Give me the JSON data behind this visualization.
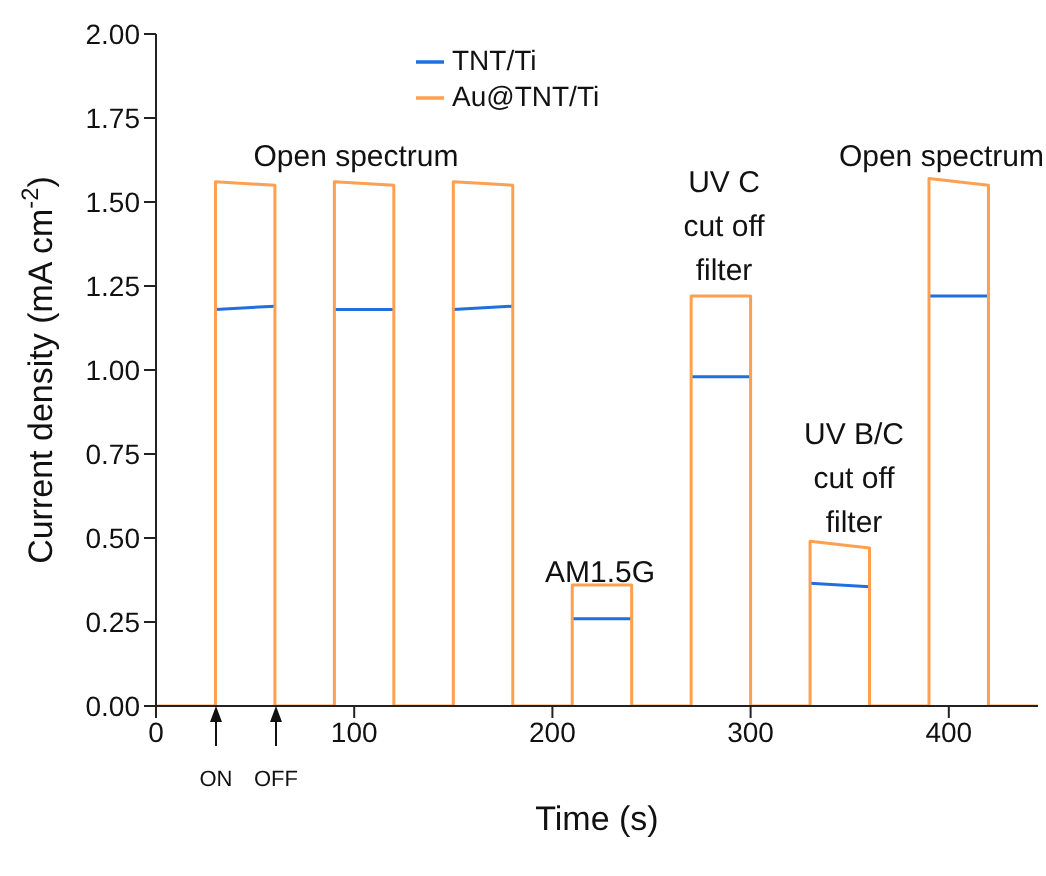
{
  "chart_data": {
    "type": "line",
    "xlabel": "Time (s)",
    "ylabel": "Current density (mA cm$^{-2}$)",
    "x": [
      0,
      30,
      30,
      60,
      60,
      90,
      90,
      120,
      120,
      150,
      150,
      180,
      180,
      210,
      210,
      240,
      240,
      270,
      270,
      300,
      300,
      330,
      330,
      360,
      360,
      390,
      390,
      420,
      420,
      445
    ],
    "series": [
      {
        "name": "TNT/Ti",
        "color": "#1f6fe0",
        "values": [
          null,
          null,
          1.18,
          1.19,
          null,
          null,
          1.18,
          1.18,
          null,
          null,
          1.18,
          1.19,
          null,
          null,
          0.26,
          0.26,
          null,
          null,
          0.98,
          0.98,
          null,
          null,
          0.365,
          0.355,
          null,
          null,
          1.22,
          1.22,
          null,
          null
        ]
      },
      {
        "name": "Au@TNT/Ti",
        "color": "#ff9f50",
        "values": [
          0,
          0,
          1.56,
          1.55,
          0,
          0,
          1.56,
          1.55,
          0,
          0,
          1.56,
          1.55,
          0,
          0,
          0.36,
          0.36,
          0,
          0,
          1.22,
          1.22,
          0,
          0,
          0.49,
          0.47,
          0,
          0,
          1.57,
          1.55,
          0,
          0
        ]
      }
    ],
    "xlim": [
      0,
      445
    ],
    "xticks": [
      0,
      100,
      200,
      300,
      400
    ],
    "ylim": [
      0,
      2
    ],
    "yticks": [
      {
        "value": 0,
        "label": "0.00"
      },
      {
        "value": 0.25,
        "label": "0.25"
      },
      {
        "value": 0.5,
        "label": "0.50"
      },
      {
        "value": 0.75,
        "label": "0.75"
      },
      {
        "value": 1,
        "label": "1.00"
      },
      {
        "value": 1.25,
        "label": "1.25"
      },
      {
        "value": 1.5,
        "label": "1.50"
      },
      {
        "value": 1.75,
        "label": "1.75"
      },
      {
        "value": 2,
        "label": "2.00"
      }
    ],
    "annotations": [
      "Open spectrum",
      "AM1.5G",
      "UV C\ncut off\nfilter",
      "UV B/C\ncut off\nfilter",
      "Open spectrum",
      "ON",
      "OFF"
    ],
    "legend": "top",
    "grid": false,
    "marker": "none",
    "line_style": "solid"
  }
}
